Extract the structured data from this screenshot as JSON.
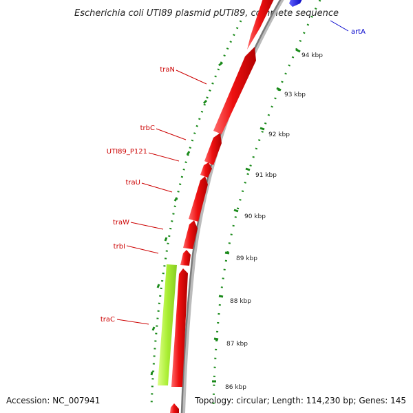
{
  "title": "Escherichia coli UTI89 plasmid pUTI89, complete sequence",
  "footer": {
    "accession": "Accession: NC_007941",
    "summary": "Topology: circular; Length: 114,230 bp; Genes: 145"
  },
  "colors": {
    "forward_gene": "#ee1111",
    "reverse_gene": "#aaee33",
    "blue_gene": "#1a1aee",
    "backbone": "#888888",
    "dots": "#1a8a1a",
    "label_red": "#cc0000",
    "label_blue": "#0000cc"
  },
  "labels": [
    {
      "id": "artA",
      "text": "artA",
      "color": "blue"
    },
    {
      "id": "traN",
      "text": "traN",
      "color": "red"
    },
    {
      "id": "trbC",
      "text": "trbC",
      "color": "red"
    },
    {
      "id": "UTI89_P121",
      "text": "UTI89_P121",
      "color": "red"
    },
    {
      "id": "traU",
      "text": "traU",
      "color": "red"
    },
    {
      "id": "traW",
      "text": "traW",
      "color": "red"
    },
    {
      "id": "trbI",
      "text": "trbI",
      "color": "red"
    },
    {
      "id": "traC",
      "text": "traC",
      "color": "red"
    }
  ],
  "ticks": [
    "94 kbp",
    "93 kbp",
    "92 kbp",
    "91 kbp",
    "90 kbp",
    "89 kbp",
    "88 kbp",
    "87 kbp",
    "86 kbp"
  ]
}
